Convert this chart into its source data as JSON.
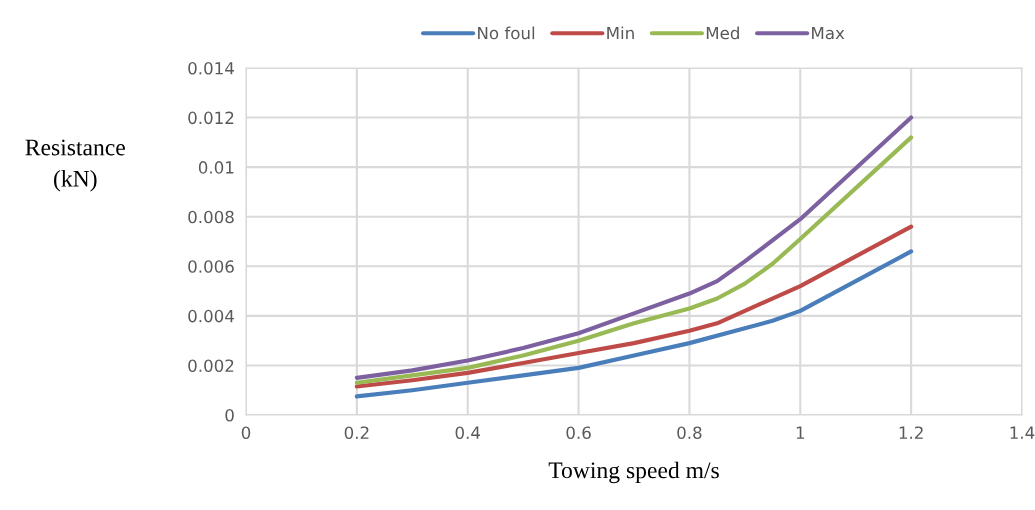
{
  "chart_data": {
    "type": "line",
    "xlabel": "Towing speed m/s",
    "ylabel": "Resistance\n(kN)",
    "xlim": [
      0,
      1.4
    ],
    "ylim": [
      0,
      0.014
    ],
    "xticks": [
      0,
      0.2,
      0.4,
      0.6,
      0.8,
      1,
      1.2,
      1.4
    ],
    "yticks": [
      0,
      0.002,
      0.004,
      0.006,
      0.008,
      0.01,
      0.012,
      0.014
    ],
    "grid": true,
    "legend": "top",
    "marker": "none",
    "line_style": "solid",
    "series": [
      {
        "name": "No foul",
        "color": "#4a7ebb",
        "x": [
          0.2,
          0.3,
          0.4,
          0.5,
          0.6,
          0.7,
          0.8,
          0.9,
          0.95,
          1.0,
          1.2
        ],
        "values": [
          0.00075,
          0.001,
          0.0013,
          0.0016,
          0.0019,
          0.0024,
          0.0029,
          0.0035,
          0.0038,
          0.0042,
          0.0066
        ]
      },
      {
        "name": "Min",
        "color": "#be4b48",
        "x": [
          0.2,
          0.3,
          0.4,
          0.5,
          0.6,
          0.7,
          0.8,
          0.85,
          0.9,
          1.0,
          1.2
        ],
        "values": [
          0.00115,
          0.0014,
          0.0017,
          0.0021,
          0.0025,
          0.0029,
          0.0034,
          0.0037,
          0.0042,
          0.0052,
          0.0076
        ]
      },
      {
        "name": "Med",
        "color": "#98b954",
        "x": [
          0.2,
          0.3,
          0.4,
          0.5,
          0.6,
          0.7,
          0.8,
          0.85,
          0.9,
          0.95,
          1.0,
          1.2
        ],
        "values": [
          0.0013,
          0.0016,
          0.0019,
          0.0024,
          0.003,
          0.0037,
          0.0043,
          0.0047,
          0.0053,
          0.0061,
          0.0071,
          0.0112
        ]
      },
      {
        "name": "Max",
        "color": "#7d60a0",
        "x": [
          0.2,
          0.3,
          0.4,
          0.5,
          0.6,
          0.7,
          0.8,
          0.85,
          0.9,
          1.0,
          1.2
        ],
        "values": [
          0.0015,
          0.0018,
          0.0022,
          0.0027,
          0.0033,
          0.0041,
          0.0049,
          0.0054,
          0.0062,
          0.0079,
          0.012
        ]
      }
    ]
  }
}
